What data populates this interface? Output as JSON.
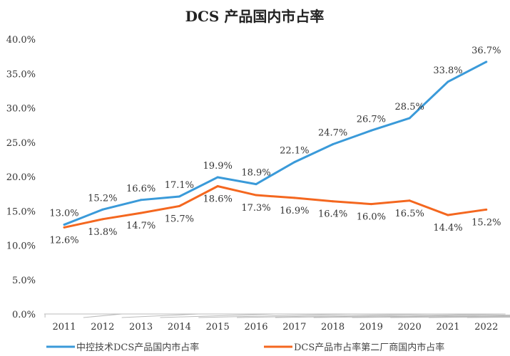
{
  "chart_data": {
    "type": "line",
    "title": "DCS 产品国内市占率",
    "categories": [
      "2011",
      "2012",
      "2013",
      "2014",
      "2015",
      "2016",
      "2017",
      "2018",
      "2019",
      "2020",
      "2021",
      "2022"
    ],
    "yticks": [
      "0.0%",
      "5.0%",
      "10.0%",
      "15.0%",
      "20.0%",
      "25.0%",
      "30.0%",
      "35.0%",
      "40.0%"
    ],
    "ylim": [
      0,
      40
    ],
    "legend_position": "bottom",
    "series": [
      {
        "name": "中控技术DCS产品国内市占率",
        "color": "#3a9ad9",
        "values": [
          13.0,
          15.2,
          16.6,
          17.1,
          19.9,
          18.9,
          22.1,
          24.7,
          26.7,
          28.5,
          33.8,
          36.7
        ],
        "labels": [
          "13.0%",
          "15.2%",
          "16.6%",
          "17.1%",
          "19.9%",
          "18.9%",
          "22.1%",
          "24.7%",
          "26.7%",
          "28.5%",
          "33.8%",
          "36.7%"
        ]
      },
      {
        "name": "DCS产品市占率第二厂商国内市占率",
        "color": "#f4671f",
        "values": [
          12.6,
          13.8,
          14.7,
          15.7,
          18.6,
          17.3,
          16.9,
          16.4,
          16.0,
          16.5,
          14.4,
          15.2
        ],
        "labels": [
          "12.6%",
          "13.8%",
          "14.7%",
          "15.7%",
          "18.6%",
          "17.3%",
          "16.9%",
          "16.4%",
          "16.0%",
          "16.5%",
          "14.4%",
          "15.2%"
        ]
      }
    ]
  }
}
